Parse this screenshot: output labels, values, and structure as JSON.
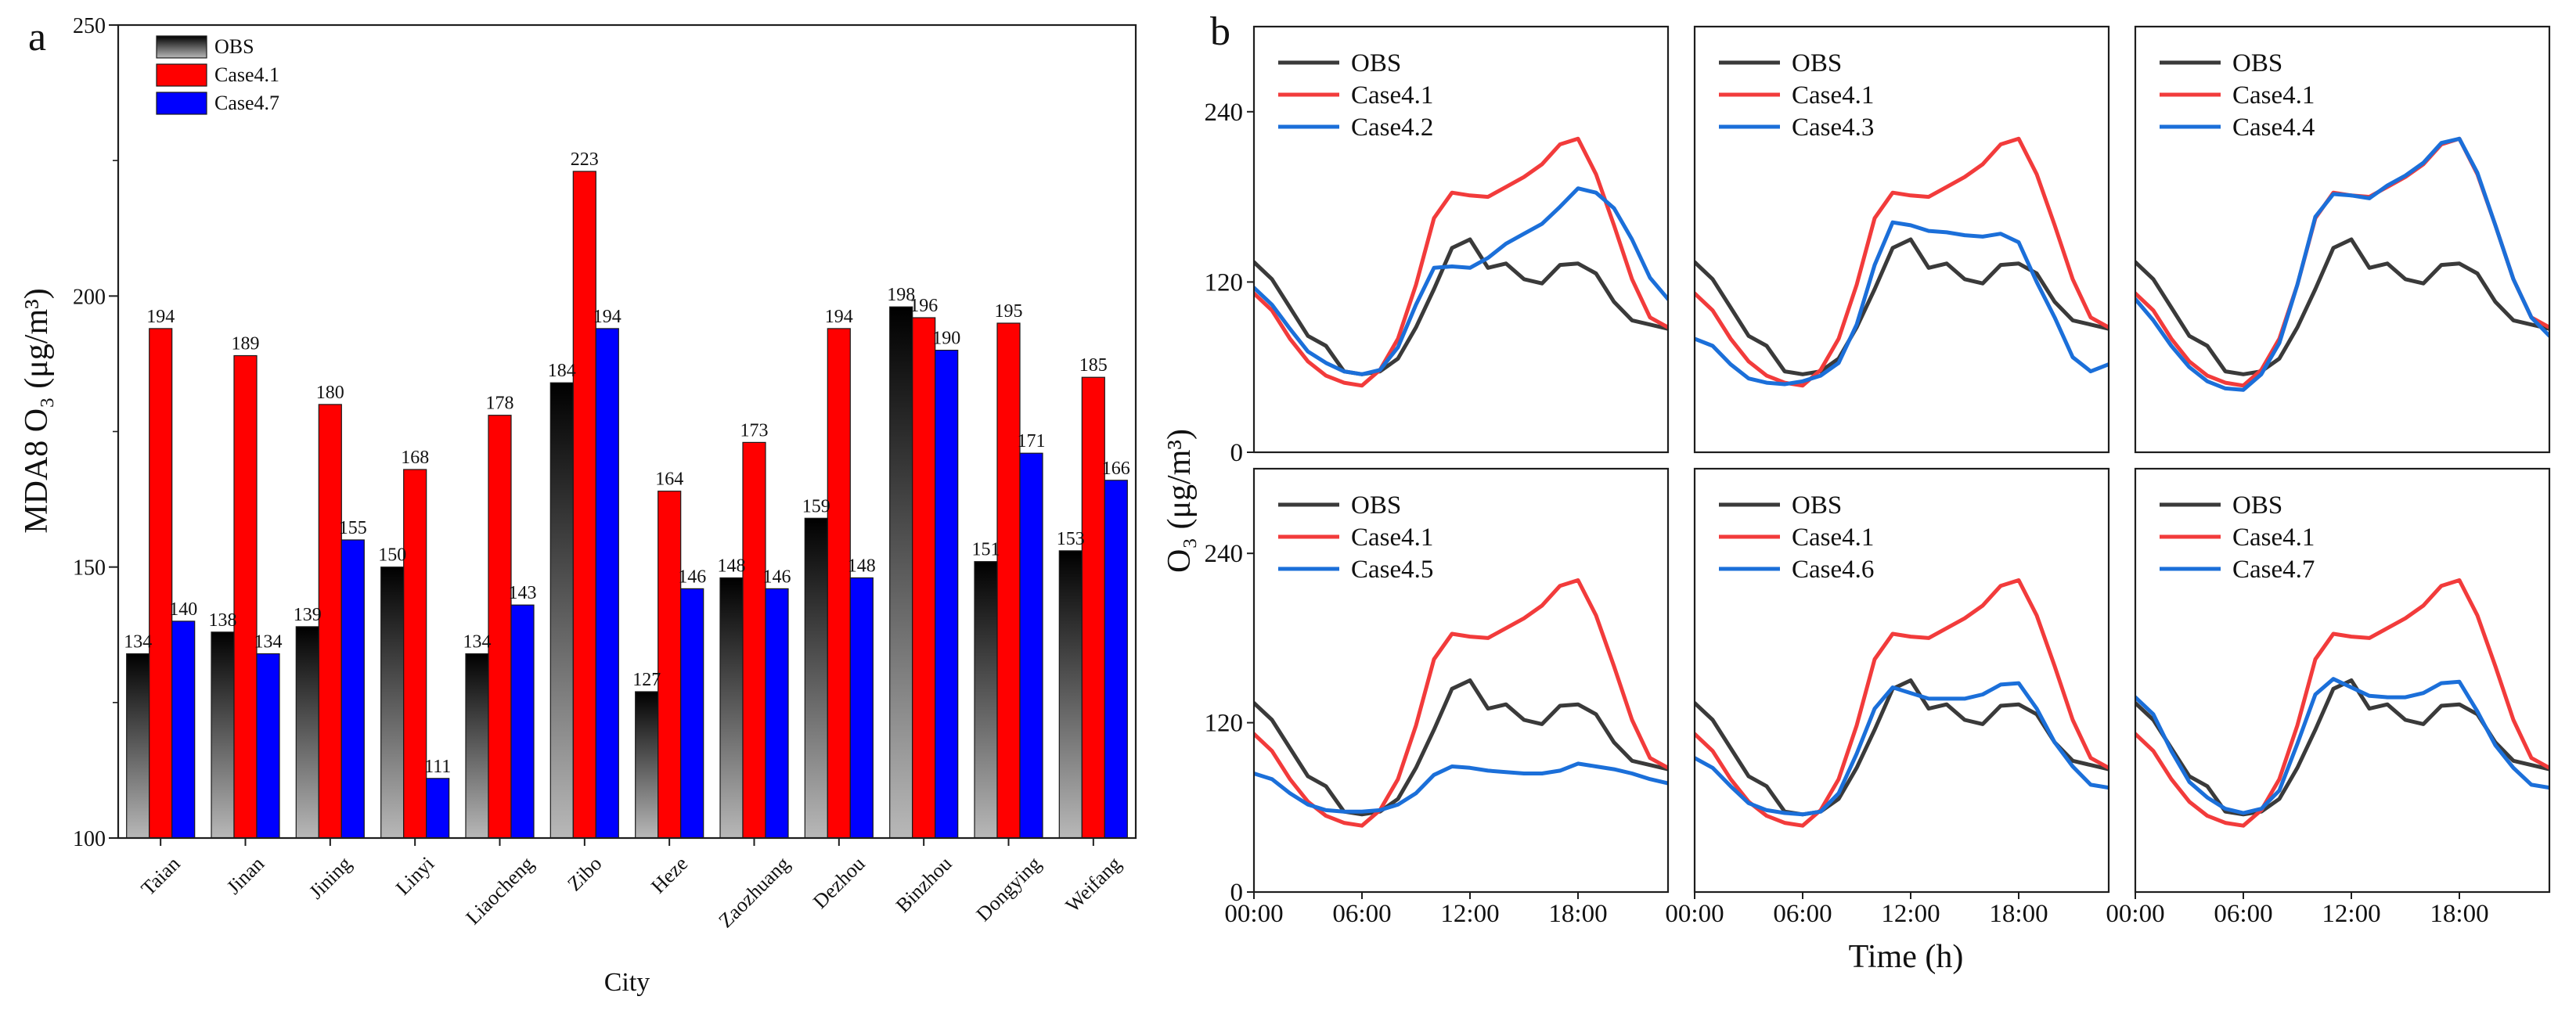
{
  "figure": {
    "panel_a": {
      "label": "a"
    },
    "panel_b": {
      "label": "b"
    }
  },
  "colors": {
    "axis": "#1e1e1e",
    "bar_outline": "#1a1a1a",
    "obs_bar_top": "#000000",
    "obs_bar_bottom": "#b8b8b8",
    "case41_bar": "#ff0000",
    "case47_bar": "#0000ff",
    "obs_line": "#3a3a3a",
    "case41_line": "#f23b3b",
    "case_line": "#1b6fd9"
  },
  "chart_data": [
    {
      "type": "bar",
      "categories": [
        "Taian",
        "Jinan",
        "Jining",
        "Linyi",
        "Liaocheng",
        "Zibo",
        "Heze",
        "Zaozhuang",
        "Dezhou",
        "Binzhou",
        "Dongying",
        "Weifang"
      ],
      "series": [
        {
          "name": "OBS",
          "values": [
            134,
            138,
            139,
            150,
            134,
            184,
            127,
            148,
            159,
            198,
            151,
            153
          ]
        },
        {
          "name": "Case4.1",
          "values": [
            194,
            189,
            180,
            168,
            178,
            223,
            164,
            173,
            194,
            196,
            195,
            185
          ]
        },
        {
          "name": "Case4.7",
          "values": [
            140,
            134,
            155,
            111,
            143,
            194,
            146,
            146,
            148,
            190,
            171,
            166
          ]
        }
      ],
      "xlabel": "City",
      "ylabel": "MDA8 O₃ (μg/m³)",
      "ylim": [
        100,
        250
      ],
      "yticks": [
        100,
        150,
        200,
        250
      ],
      "legend": "top-left",
      "grid": false
    },
    {
      "type": "line",
      "x": [
        0,
        1,
        2,
        3,
        4,
        5,
        6,
        7,
        8,
        9,
        10,
        11,
        12,
        13,
        14,
        15,
        16,
        17,
        18,
        19,
        20,
        21,
        22,
        23
      ],
      "xlim": [
        0,
        23
      ],
      "ylim": [
        0,
        300
      ],
      "xticks": [
        0,
        6,
        12,
        18
      ],
      "xtick_labels": [
        "00:00",
        "06:00",
        "12:00",
        "18:00"
      ],
      "yticks": [
        0,
        120,
        240
      ],
      "xlabel": "Time (h)",
      "ylabel": "O₃ (μg/m³)",
      "legend": "top-left",
      "grid": false,
      "shared_series": [
        {
          "name": "OBS",
          "values": [
            134,
            122,
            102,
            82,
            75,
            57,
            55,
            57,
            66,
            88,
            115,
            144,
            150,
            130,
            133,
            122,
            119,
            132,
            133,
            126,
            106,
            93,
            90,
            87
          ]
        },
        {
          "name": "Case4.1",
          "values": [
            112,
            100,
            80,
            64,
            54,
            49,
            47,
            58,
            80,
            118,
            165,
            183,
            181,
            180,
            187,
            194,
            203,
            217,
            221,
            196,
            160,
            122,
            95,
            88
          ]
        }
      ],
      "subplots": [
        {
          "series": {
            "name": "Case4.2",
            "values": [
              116,
              104,
              87,
              71,
              63,
              57,
              55,
              58,
              74,
              104,
              130,
              131,
              130,
              137,
              147,
              154,
              161,
              173,
              186,
              183,
              172,
              150,
              123,
              108
            ]
          }
        },
        {
          "series": {
            "name": "Case4.3",
            "values": [
              80,
              75,
              62,
              52,
              49,
              48,
              50,
              54,
              63,
              90,
              132,
              162,
              160,
              156,
              155,
              153,
              152,
              154,
              148,
              120,
              95,
              67,
              57,
              62
            ]
          }
        },
        {
          "series": {
            "name": "Case4.4",
            "values": [
              108,
              93,
              75,
              60,
              50,
              45,
              44,
              55,
              77,
              118,
              166,
              182,
              181,
              179,
              188,
              195,
              204,
              218,
              221,
              197,
              160,
              122,
              95,
              82
            ]
          }
        },
        {
          "series": {
            "name": "Case4.5",
            "values": [
              84,
              80,
              70,
              62,
              58,
              57,
              57,
              58,
              62,
              70,
              83,
              89,
              88,
              86,
              85,
              84,
              84,
              86,
              91,
              89,
              87,
              84,
              80,
              77
            ]
          }
        },
        {
          "series": {
            "name": "Case4.6",
            "values": [
              95,
              88,
              75,
              63,
              58,
              56,
              55,
              57,
              70,
              98,
              130,
              145,
              141,
              137,
              137,
              137,
              140,
              147,
              148,
              130,
              106,
              89,
              76,
              74
            ]
          }
        },
        {
          "series": {
            "name": "Case4.7",
            "values": [
              138,
              126,
              100,
              78,
              67,
              59,
              56,
              59,
              72,
              105,
              140,
              151,
              145,
              139,
              138,
              138,
              141,
              148,
              149,
              128,
              104,
              88,
              76,
              74
            ]
          }
        }
      ]
    }
  ]
}
